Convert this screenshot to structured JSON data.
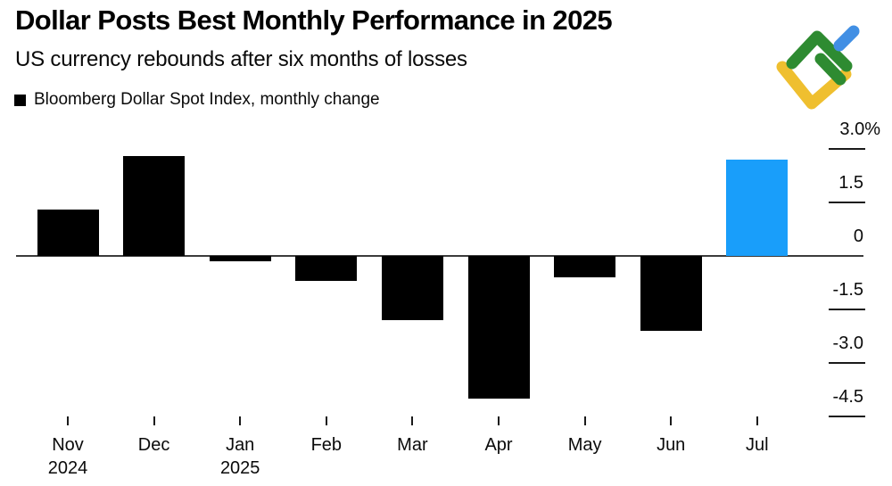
{
  "header": {
    "title": "Dollar Posts Best Monthly Performance in 2025",
    "subtitle": "US currency rebounds after six months of losses"
  },
  "legend": {
    "label": "Bloomberg Dollar Spot Index, monthly change",
    "swatch_color": "#000000"
  },
  "logo": {
    "name": "litefinance-logo",
    "colors": {
      "green": "#2E8B31",
      "blue": "#418FE4",
      "yellow": "#EFBF2F"
    }
  },
  "chart_data": {
    "type": "bar",
    "title": "Dollar Posts Best Monthly Performance in 2025",
    "subtitle": "US currency rebounds after six months of losses",
    "series_name": "Bloomberg Dollar Spot Index, monthly change",
    "categories": [
      "Nov",
      "Dec",
      "Jan",
      "Feb",
      "Mar",
      "Apr",
      "May",
      "Jun",
      "Jul"
    ],
    "secondary_x_labels": [
      {
        "index": 0,
        "label": "2024"
      },
      {
        "index": 2,
        "label": "2025"
      }
    ],
    "values": [
      1.3,
      2.8,
      -0.15,
      -0.7,
      -1.8,
      -4.0,
      -0.6,
      -2.1,
      2.7
    ],
    "unit": "%",
    "bar_color_default": "#000000",
    "highlight_index": 8,
    "highlight_color": "#199EFA",
    "y_ticks": [
      3.0,
      1.5,
      0,
      -1.5,
      -3.0,
      -4.5
    ],
    "y_tick_labels": [
      "3.0%",
      "1.5",
      "0",
      "-1.5",
      "-3.0",
      "-4.5"
    ],
    "ylim": [
      -4.9,
      3.2
    ],
    "grid": "right-edge tick stubs only, zero baseline across plot",
    "legend_position": "top-left",
    "axis_label_side": "right"
  }
}
